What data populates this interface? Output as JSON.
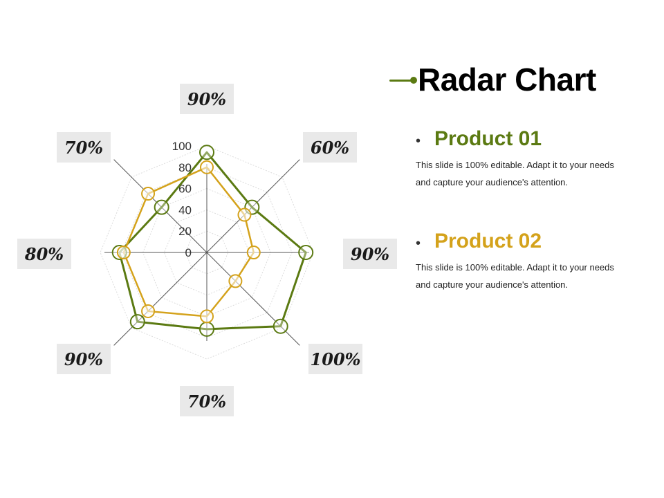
{
  "title": "Radar Chart",
  "colors": {
    "product_01": "#5b7a12",
    "product_02": "#d4a21b",
    "grid": "#dcdcdc",
    "axis": "#555555",
    "label_box": "#e9e9e9"
  },
  "products": [
    {
      "name": "Product 01",
      "bullet": "•",
      "description": "This slide is 100% editable. Adapt it to your needs and capture your audience's attention."
    },
    {
      "name": "Product 02",
      "bullet": "•",
      "description": "This slide is 100% editable. Adapt it to your needs and capture your audience's attention."
    }
  ],
  "chart_data": {
    "type": "radar",
    "title": "",
    "axes": [
      "90%",
      "60%",
      "90%",
      "100%",
      "70%",
      "90%",
      "80%",
      "70%"
    ],
    "radial_ticks": [
      "0",
      "20",
      "40",
      "60",
      "80",
      "100"
    ],
    "rlim": [
      0,
      100
    ],
    "grid": true,
    "series": [
      {
        "name": "Product 01",
        "values": [
          94,
          60,
          93,
          98,
          72,
          92,
          82,
          60
        ]
      },
      {
        "name": "Product 02",
        "values": [
          80,
          50,
          44,
          38,
          60,
          78,
          78,
          78
        ]
      }
    ]
  }
}
